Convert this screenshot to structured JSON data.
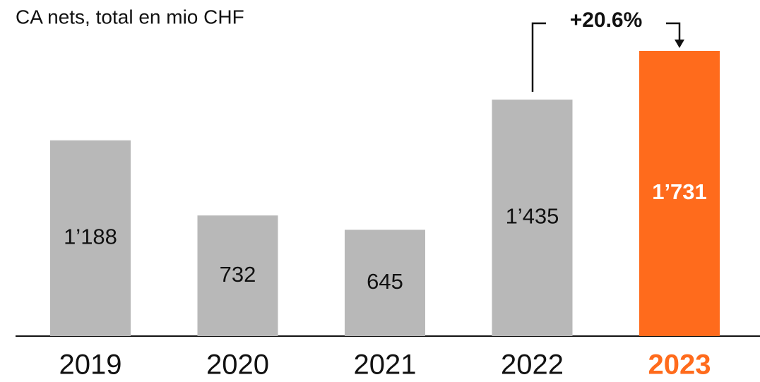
{
  "chart_data": {
    "type": "bar",
    "title": "CA nets, total en mio CHF",
    "categories": [
      "2019",
      "2020",
      "2021",
      "2022",
      "2023"
    ],
    "values": [
      1188,
      732,
      645,
      1435,
      1731
    ],
    "value_labels": [
      "1’188",
      "732",
      "645",
      "1’435",
      "1’731"
    ],
    "colors": [
      "#b8b8b8",
      "#b8b8b8",
      "#b8b8b8",
      "#b8b8b8",
      "#ff6b1c"
    ],
    "highlight": 4,
    "annotation": "+20.6%"
  }
}
